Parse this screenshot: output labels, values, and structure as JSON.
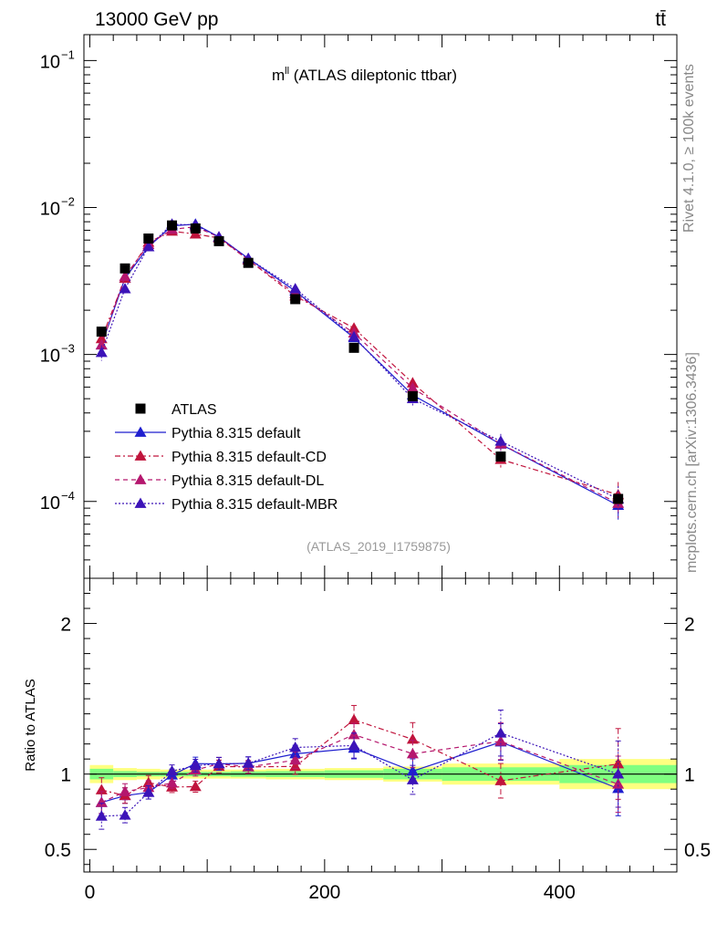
{
  "header": {
    "left": "13000 GeV pp",
    "right": "tt̄"
  },
  "side_labels": {
    "rivet": "Rivet 4.1.0, ≥ 100k events",
    "mcplots": "mcplots.cern.ch [arXiv:1306.3436]"
  },
  "chart_data": {
    "type": "scatter",
    "title": "mˡˡ (ATLAS dileptonic ttbar)",
    "title_base": "m",
    "title_sup": "ll",
    "title_rest": " (ATLAS dileptonic ttbar)",
    "analysis_label": "(ATLAS_2019_I1759875)",
    "xlim": [
      -5,
      500
    ],
    "main_ylim": [
      3e-05,
      0.15
    ],
    "main_yscale": "log",
    "main_ytick_labels": [
      {
        "value": 0.1,
        "base": "10",
        "exp": "−1"
      },
      {
        "value": 0.01,
        "base": "10",
        "exp": "−2"
      },
      {
        "value": 0.001,
        "base": "10",
        "exp": "−3"
      },
      {
        "value": 0.0001,
        "base": "10",
        "exp": "−4"
      }
    ],
    "ratio_ylabel": "Ratio to ATLAS",
    "ratio_ylim": [
      0.35,
      2.3
    ],
    "ratio_ytick_labels": [
      "2",
      "1",
      "0.5"
    ],
    "ratio_ytick_values": [
      2,
      1,
      0.5
    ],
    "xtick_labels": [
      "0",
      "200",
      "400"
    ],
    "xtick_values": [
      0,
      200,
      400
    ],
    "bin_edges": [
      0,
      20,
      40,
      60,
      80,
      100,
      120,
      150,
      200,
      250,
      300,
      400,
      500
    ],
    "x": [
      10,
      30,
      50,
      70,
      90,
      110,
      135,
      175,
      225,
      275,
      350,
      450
    ],
    "data": {
      "name": "ATLAS",
      "values": [
        0.00143,
        0.00385,
        0.00615,
        0.00755,
        0.0072,
        0.0059,
        0.0042,
        0.00238,
        0.00111,
        0.00052,
        0.000202,
        0.000104
      ],
      "band_stat": [
        0.035,
        0.02,
        0.015,
        0.015,
        0.015,
        0.015,
        0.018,
        0.02,
        0.025,
        0.035,
        0.045,
        0.06
      ],
      "band_total": [
        0.06,
        0.04,
        0.035,
        0.03,
        0.03,
        0.03,
        0.03,
        0.035,
        0.04,
        0.05,
        0.07,
        0.1
      ]
    },
    "series": [
      {
        "name": "Pythia 8.315 default",
        "color": "#1f1fcf",
        "dash": "",
        "values": [
          0.00116,
          0.0033,
          0.0054,
          0.0075,
          0.0077,
          0.0063,
          0.0045,
          0.0027,
          0.0013,
          0.00053,
          0.000245,
          9.4e-05
        ],
        "errors": [
          0.09,
          0.06,
          0.05,
          0.04,
          0.04,
          0.04,
          0.04,
          0.05,
          0.06,
          0.08,
          0.1,
          0.2
        ]
      },
      {
        "name": "Pythia 8.315 default-CD",
        "color": "#c0143c",
        "dash": "6,3,2,3",
        "values": [
          0.00128,
          0.0033,
          0.0058,
          0.0069,
          0.0066,
          0.0062,
          0.0044,
          0.0025,
          0.00151,
          0.00064,
          0.000193,
          0.000111
        ],
        "errors": [
          0.09,
          0.06,
          0.05,
          0.04,
          0.04,
          0.04,
          0.04,
          0.05,
          0.07,
          0.09,
          0.12,
          0.22
        ]
      },
      {
        "name": "Pythia 8.315 default-DL",
        "color": "#b5176e",
        "dash": "5,4",
        "values": [
          0.00116,
          0.0034,
          0.0056,
          0.0071,
          0.0074,
          0.0063,
          0.0044,
          0.0026,
          0.0014,
          0.00059,
          0.000246,
          9.7e-05
        ],
        "errors": [
          0.09,
          0.06,
          0.05,
          0.04,
          0.04,
          0.04,
          0.04,
          0.05,
          0.06,
          0.08,
          0.1,
          0.2
        ]
      },
      {
        "name": "Pythia 8.315 default-MBR",
        "color": "#3c13b8",
        "dash": "2,2",
        "values": [
          0.00103,
          0.0028,
          0.0054,
          0.0077,
          0.0076,
          0.0063,
          0.0045,
          0.0028,
          0.00132,
          0.0005,
          0.000257,
          0.000104
        ],
        "errors": [
          0.12,
          0.07,
          0.05,
          0.04,
          0.04,
          0.04,
          0.04,
          0.05,
          0.07,
          0.1,
          0.12,
          0.22
        ]
      }
    ],
    "legend_position": "center-left",
    "grid": false
  }
}
